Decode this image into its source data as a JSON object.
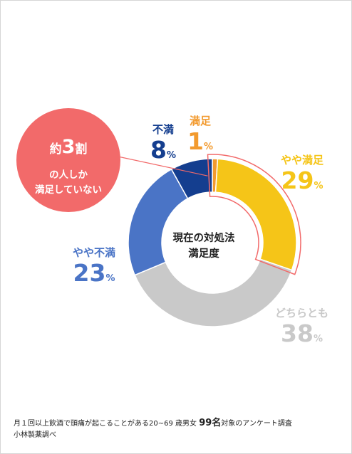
{
  "chart_data": {
    "type": "pie",
    "title": "現在の対処法満足度",
    "title_lines": [
      "現在の対処法",
      "満足度"
    ],
    "unit": "%",
    "categories": [
      "満足",
      "やや満足",
      "どちらとも",
      "やや不満",
      "不満"
    ],
    "values": [
      1,
      29,
      38,
      23,
      8
    ],
    "colors": [
      "#f29a2e",
      "#f5c518",
      "#c9c9c9",
      "#4a74c6",
      "#143e8f"
    ],
    "highlight_color": "#f26a6a"
  },
  "callout": {
    "prefix": "約",
    "number": "3",
    "suffix": "割",
    "line2": "の人しか",
    "line3": "満足していない"
  },
  "footnote": {
    "line1_pre": "月１回以上飲酒で頭痛が起こることがある20~69 歳男女 ",
    "line1_big": "99名",
    "line1_post": "対象のアンケート調査",
    "line2": "小林製薬調べ"
  }
}
